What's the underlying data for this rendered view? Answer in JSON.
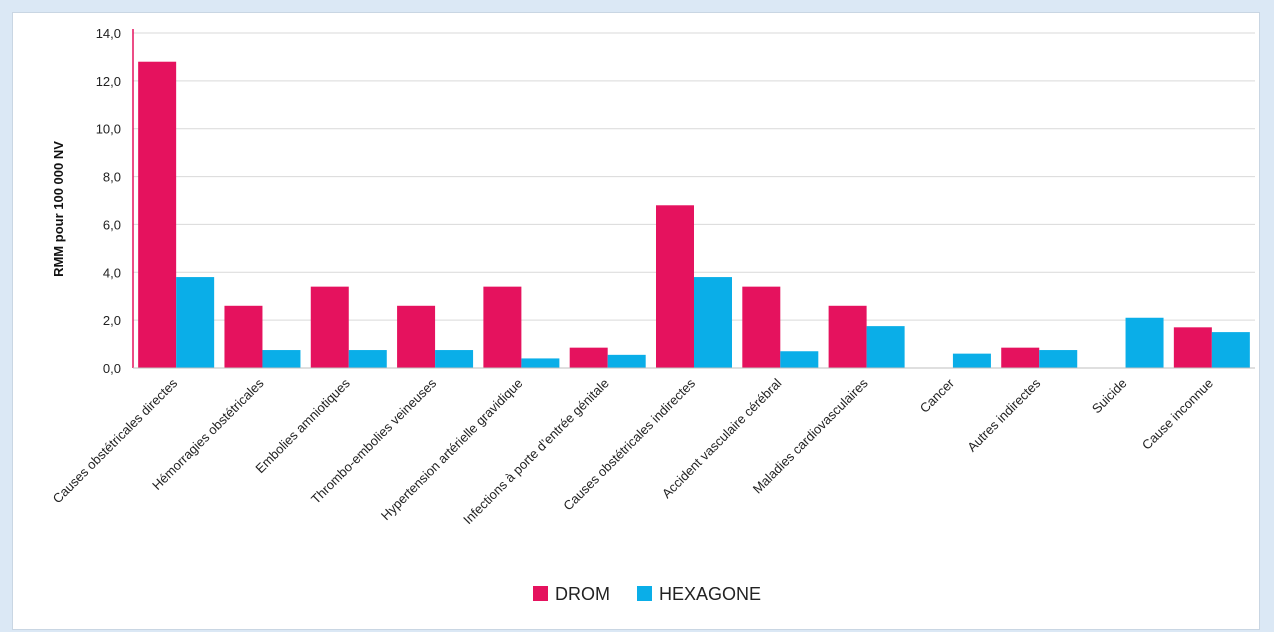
{
  "chart_data": {
    "type": "bar",
    "ylabel": "RMM pour  100 000 NV",
    "ylim": [
      0,
      14
    ],
    "ytick_step": 2,
    "ytick_labels": [
      "0,0",
      "2,0",
      "4,0",
      "6,0",
      "8,0",
      "10,0",
      "12,0",
      "14,0"
    ],
    "grid": true,
    "legend_position": "bottom-center",
    "categories": [
      "Causes obstétricales directes",
      "Hémorragies obstétricales",
      "Embolies amniotiques",
      "Thrombo-embolies veineuses",
      "Hypertension artérielle gravidique",
      "Infections à porte d’entrée génitale",
      "Causes obstétricales indirectes",
      "Accident vasculaire cérébral",
      "Maladies cardiovasculaires",
      "Cancer",
      "Autres indirectes",
      "Suicide",
      "Cause inconnue"
    ],
    "series": [
      {
        "name": "DROM",
        "color": "#e5125e",
        "values": [
          12.8,
          2.6,
          3.4,
          2.6,
          3.4,
          0.85,
          6.8,
          3.4,
          2.6,
          0,
          0.85,
          0,
          1.7
        ]
      },
      {
        "name": "HEXAGONE",
        "color": "#0aaee8",
        "values": [
          3.8,
          0.75,
          0.75,
          0.75,
          0.4,
          0.55,
          3.8,
          0.7,
          1.75,
          0.6,
          0.75,
          2.1,
          1.5
        ]
      }
    ]
  }
}
